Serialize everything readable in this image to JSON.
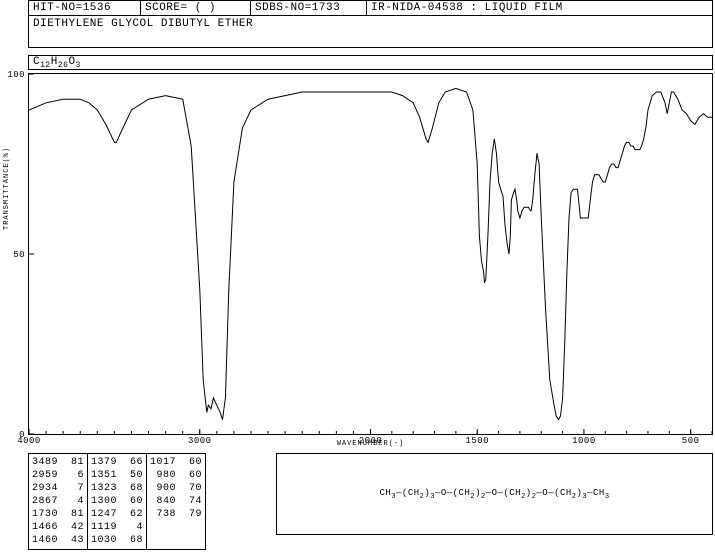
{
  "header": {
    "hit_no": "HIT-NO=1536",
    "score": "SCORE=  (  )",
    "sdbs_no": "SDBS-NO=1733",
    "title": "IR-NIDA-04538 : LIQUID FILM"
  },
  "compound_name": "DIETHYLENE GLYCOL DIBUTYL ETHER",
  "formula_html": "C<sub>12</sub>H<sub>26</sub>O<sub>3</sub>",
  "chart": {
    "type": "line",
    "xlabel": "WAVENUMBER(-)",
    "ylabel": "TRANSMITTANCE(%)",
    "xlim": [
      4000,
      400
    ],
    "ylim": [
      0,
      100
    ],
    "xtick_positions": [
      4000,
      3000,
      2000,
      1500,
      1000,
      500
    ],
    "ytick_positions": [
      0,
      50,
      100
    ],
    "line_color": "#000000",
    "background_color": "#ffffff",
    "line_width": 1,
    "data": [
      [
        4000,
        90
      ],
      [
        3900,
        92
      ],
      [
        3800,
        93
      ],
      [
        3700,
        93
      ],
      [
        3650,
        92
      ],
      [
        3600,
        90
      ],
      [
        3550,
        86
      ],
      [
        3500,
        81
      ],
      [
        3489,
        81
      ],
      [
        3450,
        85
      ],
      [
        3400,
        90
      ],
      [
        3300,
        93
      ],
      [
        3200,
        94
      ],
      [
        3100,
        93
      ],
      [
        3050,
        80
      ],
      [
        3000,
        40
      ],
      [
        2980,
        15
      ],
      [
        2959,
        6
      ],
      [
        2950,
        8
      ],
      [
        2934,
        7
      ],
      [
        2920,
        10
      ],
      [
        2900,
        8
      ],
      [
        2880,
        6
      ],
      [
        2867,
        4
      ],
      [
        2850,
        10
      ],
      [
        2830,
        40
      ],
      [
        2800,
        70
      ],
      [
        2750,
        85
      ],
      [
        2700,
        90
      ],
      [
        2600,
        93
      ],
      [
        2500,
        94
      ],
      [
        2400,
        95
      ],
      [
        2300,
        95
      ],
      [
        2200,
        95
      ],
      [
        2100,
        95
      ],
      [
        2000,
        95
      ],
      [
        1950,
        95
      ],
      [
        1900,
        95
      ],
      [
        1850,
        94
      ],
      [
        1800,
        92
      ],
      [
        1770,
        88
      ],
      [
        1740,
        82
      ],
      [
        1730,
        81
      ],
      [
        1710,
        85
      ],
      [
        1680,
        92
      ],
      [
        1650,
        95
      ],
      [
        1600,
        96
      ],
      [
        1550,
        95
      ],
      [
        1520,
        90
      ],
      [
        1500,
        75
      ],
      [
        1490,
        55
      ],
      [
        1480,
        48
      ],
      [
        1470,
        45
      ],
      [
        1466,
        42
      ],
      [
        1460,
        43
      ],
      [
        1450,
        55
      ],
      [
        1440,
        70
      ],
      [
        1430,
        78
      ],
      [
        1420,
        82
      ],
      [
        1410,
        78
      ],
      [
        1400,
        70
      ],
      [
        1390,
        68
      ],
      [
        1379,
        66
      ],
      [
        1370,
        58
      ],
      [
        1360,
        53
      ],
      [
        1351,
        50
      ],
      [
        1345,
        55
      ],
      [
        1340,
        65
      ],
      [
        1330,
        67
      ],
      [
        1323,
        68
      ],
      [
        1315,
        65
      ],
      [
        1310,
        62
      ],
      [
        1300,
        60
      ],
      [
        1290,
        62
      ],
      [
        1280,
        63
      ],
      [
        1270,
        63
      ],
      [
        1260,
        63
      ],
      [
        1250,
        62
      ],
      [
        1247,
        62
      ],
      [
        1240,
        65
      ],
      [
        1230,
        72
      ],
      [
        1220,
        78
      ],
      [
        1210,
        75
      ],
      [
        1200,
        60
      ],
      [
        1180,
        35
      ],
      [
        1160,
        15
      ],
      [
        1140,
        8
      ],
      [
        1130,
        5
      ],
      [
        1119,
        4
      ],
      [
        1110,
        5
      ],
      [
        1100,
        10
      ],
      [
        1090,
        25
      ],
      [
        1080,
        45
      ],
      [
        1070,
        60
      ],
      [
        1060,
        67
      ],
      [
        1050,
        68
      ],
      [
        1040,
        68
      ],
      [
        1030,
        68
      ],
      [
        1020,
        62
      ],
      [
        1017,
        60
      ],
      [
        1010,
        60
      ],
      [
        1000,
        60
      ],
      [
        990,
        60
      ],
      [
        980,
        60
      ],
      [
        970,
        65
      ],
      [
        960,
        70
      ],
      [
        950,
        72
      ],
      [
        940,
        72
      ],
      [
        930,
        72
      ],
      [
        920,
        71
      ],
      [
        910,
        70
      ],
      [
        900,
        70
      ],
      [
        890,
        72
      ],
      [
        880,
        74
      ],
      [
        870,
        75
      ],
      [
        860,
        75
      ],
      [
        850,
        74
      ],
      [
        840,
        74
      ],
      [
        830,
        76
      ],
      [
        820,
        78
      ],
      [
        810,
        80
      ],
      [
        800,
        81
      ],
      [
        790,
        81
      ],
      [
        780,
        80
      ],
      [
        770,
        80
      ],
      [
        760,
        79
      ],
      [
        750,
        79
      ],
      [
        740,
        79
      ],
      [
        738,
        79
      ],
      [
        730,
        80
      ],
      [
        720,
        82
      ],
      [
        710,
        85
      ],
      [
        700,
        90
      ],
      [
        680,
        94
      ],
      [
        660,
        95
      ],
      [
        640,
        95
      ],
      [
        620,
        92
      ],
      [
        610,
        89
      ],
      [
        600,
        92
      ],
      [
        590,
        95
      ],
      [
        580,
        95
      ],
      [
        560,
        93
      ],
      [
        540,
        90
      ],
      [
        520,
        89
      ],
      [
        500,
        87
      ],
      [
        480,
        86
      ],
      [
        460,
        88
      ],
      [
        440,
        89
      ],
      [
        420,
        88
      ],
      [
        400,
        88
      ]
    ]
  },
  "peak_table": {
    "columns": [
      [
        [
          3489,
          81
        ],
        [
          2959,
          6
        ],
        [
          2934,
          7
        ],
        [
          2867,
          4
        ],
        [
          1730,
          81
        ],
        [
          1466,
          42
        ],
        [
          1460,
          43
        ]
      ],
      [
        [
          1379,
          66
        ],
        [
          1351,
          50
        ],
        [
          1323,
          68
        ],
        [
          1300,
          60
        ],
        [
          1247,
          62
        ],
        [
          1119,
          4
        ],
        [
          1030,
          68
        ]
      ],
      [
        [
          1017,
          60
        ],
        [
          980,
          60
        ],
        [
          900,
          70
        ],
        [
          840,
          74
        ],
        [
          738,
          79
        ]
      ]
    ],
    "font_size": 10
  },
  "structure_html": "CH<sub>3</sub>—(CH<sub>2</sub>)<sub>3</sub>—O—(CH<sub>2</sub>)<sub>2</sub>—O—(CH<sub>2</sub>)<sub>2</sub>—O—(CH<sub>2</sub>)<sub>3</sub>—CH<sub>3</sub>"
}
